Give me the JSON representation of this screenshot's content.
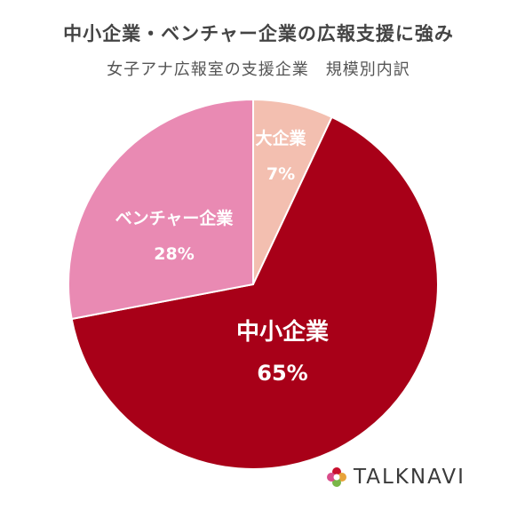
{
  "chart_data": {
    "type": "pie",
    "title": "中小企業・ベンチャー企業の広報支援に強み",
    "subtitle": "女子アナ広報室の支援企業　規模別内訳",
    "slices": [
      {
        "label": "大企業",
        "value": 7,
        "value_label": "7%",
        "color": "#f3bfb0",
        "label_color": "#ffffff"
      },
      {
        "label": "中小企業",
        "value": 65,
        "value_label": "65%",
        "color": "#a80018",
        "label_color": "#ffffff"
      },
      {
        "label": "ベンチャー企業",
        "value": 28,
        "value_label": "28%",
        "color": "#e98ab3",
        "label_color": "#ffffff"
      }
    ],
    "start": "12 o'clock",
    "direction": "clockwise"
  },
  "brand": {
    "name": "TALKNAVI",
    "logo": "flower-logo-icon"
  }
}
